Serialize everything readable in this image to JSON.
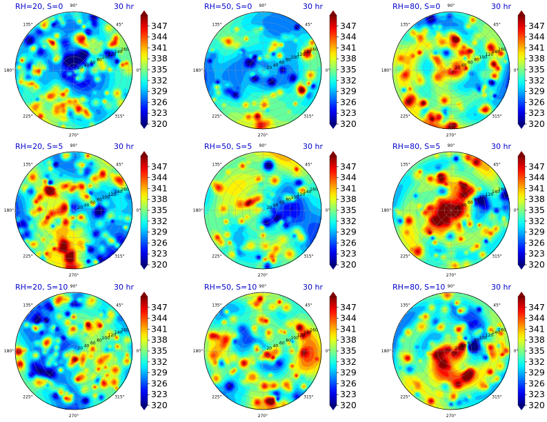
{
  "chart_data": [
    {
      "type": "heatmap",
      "title": "RH=20, S=0",
      "time_label": "30 hr",
      "center": "weak",
      "ring_amp": 0.15,
      "patch_density": 0.9,
      "base": 332,
      "seed": 11
    },
    {
      "type": "heatmap",
      "title": "RH=50, S=0",
      "time_label": "30 hr",
      "center": "none",
      "ring_amp": 0.15,
      "patch_density": 0.45,
      "base": 333,
      "seed": 23
    },
    {
      "type": "heatmap",
      "title": "RH=80, S=0",
      "time_label": "30 hr",
      "center": "strong",
      "ring_amp": 0.35,
      "patch_density": 0.6,
      "base": 334,
      "seed": 37
    },
    {
      "type": "heatmap",
      "title": "RH=20, S=5",
      "time_label": "30 hr",
      "center": "weak",
      "ring_amp": 0.1,
      "patch_density": 0.9,
      "base": 332,
      "seed": 41
    },
    {
      "type": "heatmap",
      "title": "RH=50, S=5",
      "time_label": "30 hr",
      "center": "none",
      "ring_amp": 0.15,
      "patch_density": 0.4,
      "base": 333,
      "seed": 53
    },
    {
      "type": "heatmap",
      "title": "RH=80, S=5",
      "time_label": "30 hr",
      "center": "strong",
      "ring_amp": 0.4,
      "patch_density": 0.55,
      "base": 334,
      "seed": 67
    },
    {
      "type": "heatmap",
      "title": "RH=20, S=10",
      "time_label": "30 hr",
      "center": "weak",
      "ring_amp": 0.1,
      "patch_density": 0.85,
      "base": 331,
      "seed": 71
    },
    {
      "type": "heatmap",
      "title": "RH=50, S=10",
      "time_label": "30 hr",
      "center": "med",
      "ring_amp": 0.3,
      "patch_density": 0.55,
      "base": 333,
      "seed": 83
    },
    {
      "type": "heatmap",
      "title": "RH=80, S=10",
      "time_label": "30 hr",
      "center": "strong",
      "ring_amp": 0.45,
      "patch_density": 0.5,
      "base": 334,
      "seed": 97
    }
  ],
  "polar_axis": {
    "angle_labels": [
      "0°",
      "45°",
      "90°",
      "135°",
      "180°",
      "225°",
      "270°",
      "315°"
    ],
    "radial_ticks": [
      20,
      40,
      60,
      80,
      100,
      120,
      140,
      160
    ]
  },
  "colorbar": {
    "ticks": [
      "347",
      "344",
      "341",
      "338",
      "335",
      "332",
      "329",
      "326",
      "323",
      "320"
    ],
    "vmin": 320,
    "vmax": 350
  }
}
